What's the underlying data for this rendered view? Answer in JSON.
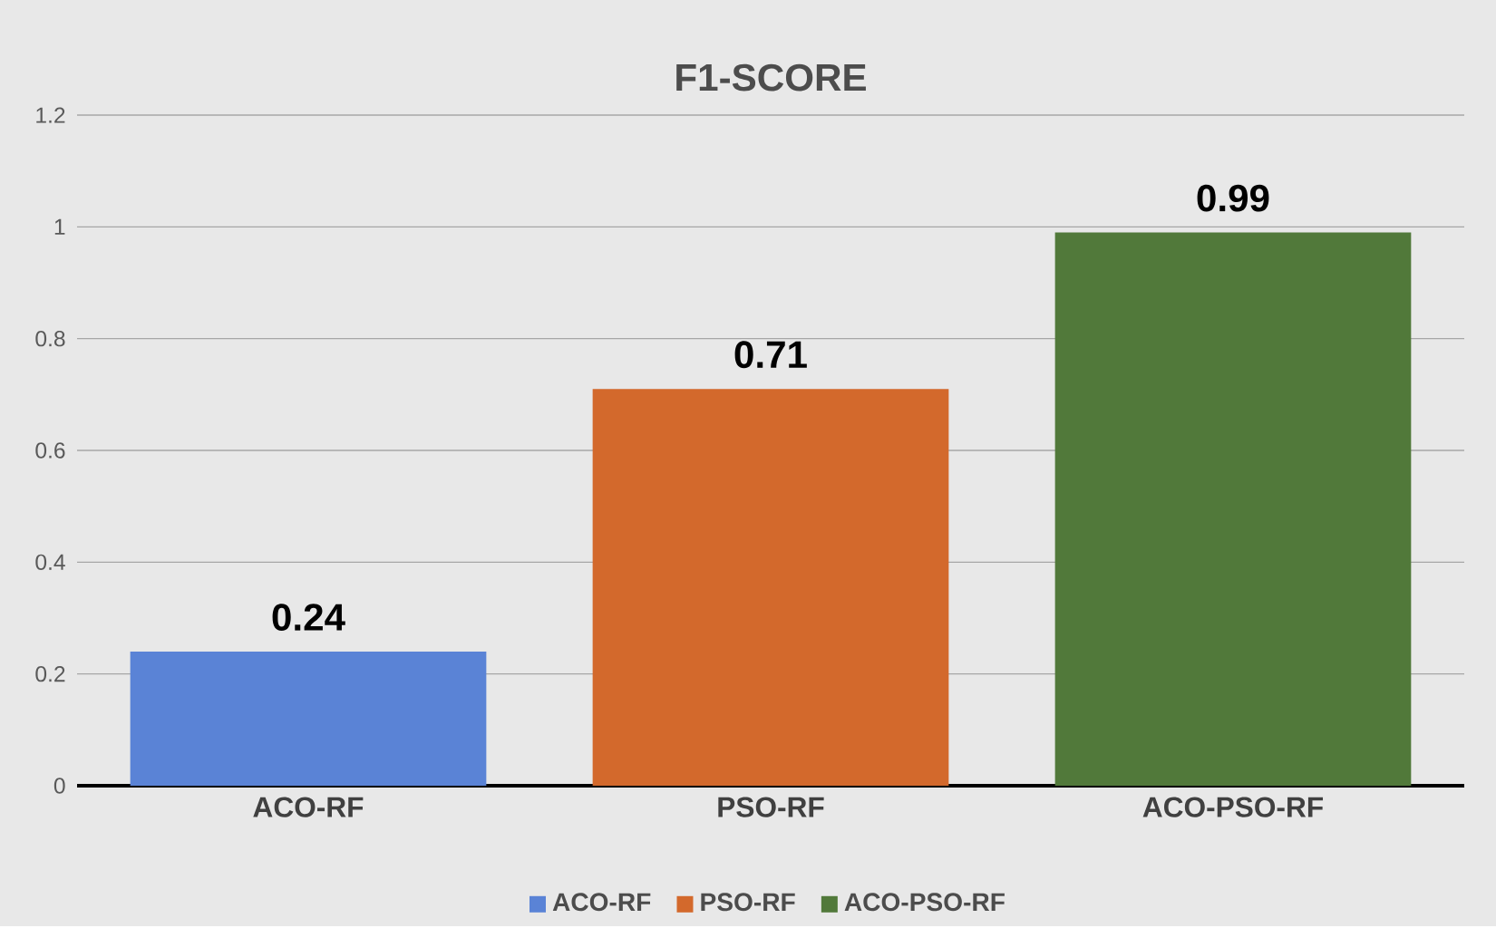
{
  "chart_data": {
    "type": "bar",
    "title": "F1-SCORE",
    "categories": [
      "ACO-RF",
      "PSO-RF",
      "ACO-PSO-RF"
    ],
    "series": [
      {
        "name": "ACO-RF",
        "color": "#5a83d6",
        "values": [
          0.24,
          null,
          null
        ]
      },
      {
        "name": "PSO-RF",
        "color": "#d3692c",
        "values": [
          null,
          0.71,
          null
        ]
      },
      {
        "name": "ACO-PSO-RF",
        "color": "#51793a",
        "values": [
          null,
          null,
          0.99
        ]
      }
    ],
    "ylim": [
      0,
      1.2
    ],
    "yticks": [
      0,
      0.2,
      0.4,
      0.6,
      0.8,
      1,
      1.2
    ],
    "grid": "y",
    "data_labels": true,
    "legend": "bottom"
  }
}
